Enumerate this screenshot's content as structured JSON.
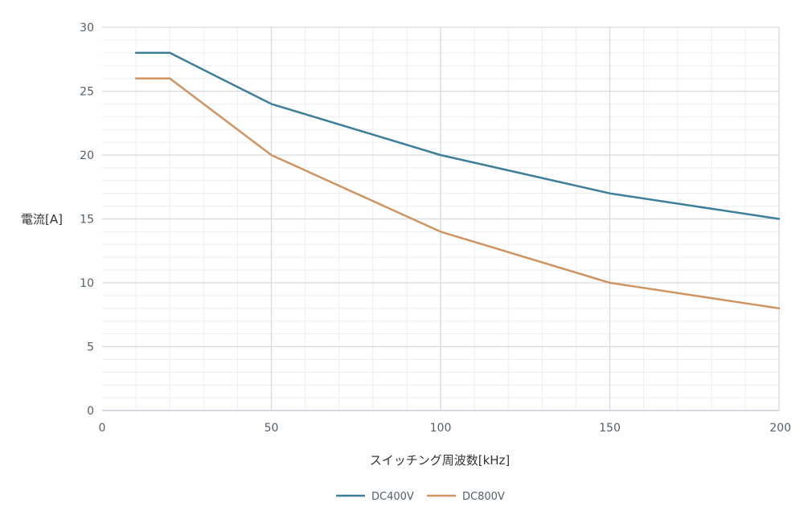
{
  "chart_data": {
    "type": "line",
    "xlabel": "スイッチング周波数[kHz]",
    "ylabel": "電流[A]",
    "xlim": [
      0,
      200
    ],
    "ylim": [
      0,
      30
    ],
    "x_ticks": [
      "0",
      "50",
      "100",
      "150",
      "200"
    ],
    "y_ticks": [
      "0",
      "5",
      "10",
      "15",
      "20",
      "25",
      "30"
    ],
    "grid": true,
    "legend_position": "bottom-center",
    "series": [
      {
        "name": "DC400V",
        "color": "#3d7f99",
        "x": [
          10,
          20,
          50,
          100,
          150,
          200
        ],
        "y": [
          28,
          28,
          24,
          20,
          17,
          15
        ]
      },
      {
        "name": "DC800V",
        "color": "#cf9461",
        "x": [
          10,
          20,
          50,
          100,
          150,
          200
        ],
        "y": [
          26,
          26,
          20,
          14,
          10,
          8
        ]
      }
    ]
  }
}
